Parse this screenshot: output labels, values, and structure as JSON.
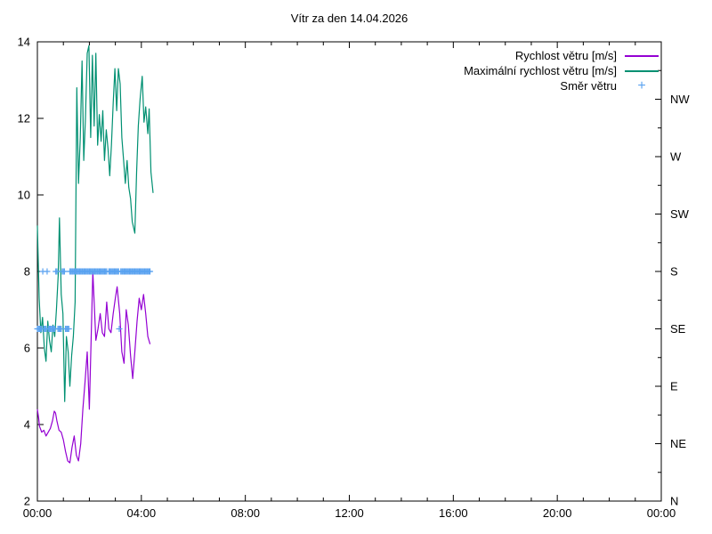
{
  "title": "Vítr za den 14.04.2026",
  "legend": [
    {
      "label": "Rychlost větru [m/s]",
      "type": "line",
      "color": "#9400d3"
    },
    {
      "label": "Maximální rychlost větru [m/s]",
      "type": "line",
      "color": "#009072"
    },
    {
      "label": "Směr větru",
      "type": "plus",
      "color": "#5aa2f0"
    }
  ],
  "chart_data": {
    "type": "line",
    "title": "Vítr za den 14.04.2026",
    "grid": false,
    "legend_position": "top-right-inside",
    "x_axis": {
      "unit": "time of day",
      "range_hours": [
        0,
        24
      ],
      "major_tick_hours": [
        0,
        4,
        8,
        12,
        16,
        20,
        24
      ],
      "major_tick_labels": [
        "00:00",
        "04:00",
        "08:00",
        "12:00",
        "16:00",
        "20:00",
        "00:00"
      ],
      "minor_tick_every_hours": 1
    },
    "y_axis_left": {
      "unit": "m/s",
      "range": [
        2,
        14
      ],
      "ticks": [
        2,
        4,
        6,
        8,
        10,
        12,
        14
      ]
    },
    "y_axis_right": {
      "unit": "wind direction",
      "minor_tick_step": 0.75,
      "labels": [
        {
          "value": 2,
          "label": "N"
        },
        {
          "value": 3.5,
          "label": "NE"
        },
        {
          "value": 5,
          "label": "E"
        },
        {
          "value": 6.5,
          "label": "SE"
        },
        {
          "value": 8,
          "label": "S"
        },
        {
          "value": 9.5,
          "label": "SW"
        },
        {
          "value": 11,
          "label": "W"
        },
        {
          "value": 12.5,
          "label": "NW"
        }
      ]
    },
    "series": [
      {
        "name": "Rychlost větru [m/s]",
        "style": "line",
        "color": "#9400d3",
        "points": [
          [
            0,
            4.4
          ],
          [
            0.05,
            4.15
          ],
          [
            0.083,
            3.95
          ],
          [
            0.167,
            3.8
          ],
          [
            0.25,
            3.85
          ],
          [
            0.333,
            3.7
          ],
          [
            0.417,
            3.8
          ],
          [
            0.5,
            3.9
          ],
          [
            0.583,
            4.1
          ],
          [
            0.65,
            4.35
          ],
          [
            0.7,
            4.3
          ],
          [
            0.75,
            4.1
          ],
          [
            0.833,
            3.85
          ],
          [
            0.917,
            3.8
          ],
          [
            1,
            3.6
          ],
          [
            1.083,
            3.3
          ],
          [
            1.167,
            3.05
          ],
          [
            1.25,
            3
          ],
          [
            1.333,
            3.4
          ],
          [
            1.417,
            3.7
          ],
          [
            1.5,
            3.2
          ],
          [
            1.583,
            3.05
          ],
          [
            1.667,
            3.5
          ],
          [
            1.75,
            4.4
          ],
          [
            1.833,
            5.1
          ],
          [
            1.917,
            5.9
          ],
          [
            2,
            4.4
          ],
          [
            2.083,
            6.6
          ],
          [
            2.133,
            8
          ],
          [
            2.183,
            7.2
          ],
          [
            2.25,
            6.2
          ],
          [
            2.333,
            6.5
          ],
          [
            2.417,
            6.9
          ],
          [
            2.5,
            6.4
          ],
          [
            2.583,
            6.3
          ],
          [
            2.667,
            7.2
          ],
          [
            2.75,
            6.5
          ],
          [
            2.833,
            6.4
          ],
          [
            2.917,
            6.9
          ],
          [
            3,
            7.3
          ],
          [
            3.067,
            7.6
          ],
          [
            3.167,
            6.9
          ],
          [
            3.25,
            5.9
          ],
          [
            3.333,
            5.6
          ],
          [
            3.417,
            7
          ],
          [
            3.5,
            6.6
          ],
          [
            3.583,
            5.8
          ],
          [
            3.667,
            5.2
          ],
          [
            3.75,
            5.9
          ],
          [
            3.833,
            6.7
          ],
          [
            3.917,
            7.3
          ],
          [
            4,
            7
          ],
          [
            4.083,
            7.4
          ],
          [
            4.167,
            6.9
          ],
          [
            4.25,
            6.3
          ],
          [
            4.333,
            6.1
          ]
        ]
      },
      {
        "name": "Maximální rychlost větru [m/s]",
        "style": "line",
        "color": "#009072",
        "points": [
          [
            0,
            9.2
          ],
          [
            0.067,
            7.3
          ],
          [
            0.133,
            6.4
          ],
          [
            0.2,
            6.8
          ],
          [
            0.267,
            6
          ],
          [
            0.333,
            5.65
          ],
          [
            0.4,
            6.7
          ],
          [
            0.467,
            6.2
          ],
          [
            0.533,
            5.9
          ],
          [
            0.6,
            6.6
          ],
          [
            0.667,
            6.3
          ],
          [
            0.733,
            7
          ],
          [
            0.8,
            7.9
          ],
          [
            0.85,
            9.4
          ],
          [
            0.917,
            7.4
          ],
          [
            0.983,
            6.9
          ],
          [
            1.05,
            4.6
          ],
          [
            1.117,
            6.3
          ],
          [
            1.183,
            5.9
          ],
          [
            1.25,
            5
          ],
          [
            1.317,
            5.8
          ],
          [
            1.383,
            6.3
          ],
          [
            1.45,
            7.2
          ],
          [
            1.517,
            12.8
          ],
          [
            1.583,
            10.3
          ],
          [
            1.65,
            11.5
          ],
          [
            1.717,
            13.5
          ],
          [
            1.783,
            10.9
          ],
          [
            1.85,
            12
          ],
          [
            1.917,
            13.7
          ],
          [
            1.983,
            13.9
          ],
          [
            2.05,
            11.5
          ],
          [
            2.117,
            13.65
          ],
          [
            2.183,
            11.8
          ],
          [
            2.25,
            13.7
          ],
          [
            2.317,
            11.3
          ],
          [
            2.383,
            12.1
          ],
          [
            2.45,
            11.4
          ],
          [
            2.517,
            12.2
          ],
          [
            2.583,
            10.9
          ],
          [
            2.65,
            11.7
          ],
          [
            2.717,
            11.2
          ],
          [
            2.783,
            10.5
          ],
          [
            2.85,
            11.3
          ],
          [
            2.917,
            12.4
          ],
          [
            2.983,
            13.3
          ],
          [
            3.05,
            12.2
          ],
          [
            3.117,
            13.3
          ],
          [
            3.183,
            12.9
          ],
          [
            3.25,
            11.5
          ],
          [
            3.317,
            10.9
          ],
          [
            3.383,
            10.3
          ],
          [
            3.45,
            10.9
          ],
          [
            3.517,
            10.2
          ],
          [
            3.583,
            9.9
          ],
          [
            3.65,
            9.3
          ],
          [
            3.75,
            9
          ],
          [
            3.817,
            10.6
          ],
          [
            3.883,
            11.8
          ],
          [
            3.95,
            12.5
          ],
          [
            4.033,
            13.1
          ],
          [
            4.1,
            11.9
          ],
          [
            4.167,
            12.3
          ],
          [
            4.25,
            11.6
          ],
          [
            4.3,
            12.25
          ],
          [
            4.367,
            10.6
          ],
          [
            4.45,
            10.05
          ]
        ]
      },
      {
        "name": "Směr větru",
        "style": "plus",
        "color": "#5aa2f0",
        "direction_value_map": {
          "N": 2,
          "NE": 3.5,
          "E": 5,
          "SE": 6.5,
          "S": 8,
          "SW": 9.5,
          "W": 11,
          "NW": 12.5
        },
        "points": [
          [
            0,
            "SE"
          ],
          [
            0.042,
            "SE"
          ],
          [
            0.083,
            "SE"
          ],
          [
            0.125,
            "SE"
          ],
          [
            0.167,
            "SE"
          ],
          [
            0.208,
            "S"
          ],
          [
            0.25,
            "SE"
          ],
          [
            0.292,
            "SE"
          ],
          [
            0.333,
            "SE"
          ],
          [
            0.375,
            "S"
          ],
          [
            0.417,
            "SE"
          ],
          [
            0.458,
            "SE"
          ],
          [
            0.5,
            "SE"
          ],
          [
            0.542,
            "SE"
          ],
          [
            0.583,
            "SE"
          ],
          [
            0.625,
            "SE"
          ],
          [
            0.667,
            "SE"
          ],
          [
            0.708,
            "S"
          ],
          [
            0.75,
            "S"
          ],
          [
            0.792,
            "SE"
          ],
          [
            0.833,
            "SE"
          ],
          [
            0.875,
            "SE"
          ],
          [
            0.917,
            "SE"
          ],
          [
            0.958,
            "S"
          ],
          [
            1,
            "S"
          ],
          [
            1.042,
            "S"
          ],
          [
            1.083,
            "SE"
          ],
          [
            1.125,
            "SE"
          ],
          [
            1.167,
            "SE"
          ],
          [
            1.208,
            "SE"
          ],
          [
            1.25,
            "S"
          ],
          [
            1.292,
            "S"
          ],
          [
            1.333,
            "S"
          ],
          [
            1.375,
            "S"
          ],
          [
            1.417,
            "S"
          ],
          [
            1.458,
            "S"
          ],
          [
            1.5,
            "S"
          ],
          [
            1.542,
            "S"
          ],
          [
            1.583,
            "S"
          ],
          [
            1.625,
            "S"
          ],
          [
            1.667,
            "S"
          ],
          [
            1.708,
            "S"
          ],
          [
            1.75,
            "S"
          ],
          [
            1.792,
            "S"
          ],
          [
            1.833,
            "S"
          ],
          [
            1.875,
            "S"
          ],
          [
            1.917,
            "S"
          ],
          [
            1.958,
            "S"
          ],
          [
            2,
            "S"
          ],
          [
            2.042,
            "S"
          ],
          [
            2.083,
            "S"
          ],
          [
            2.125,
            "S"
          ],
          [
            2.167,
            "S"
          ],
          [
            2.208,
            "S"
          ],
          [
            2.25,
            "S"
          ],
          [
            2.292,
            "S"
          ],
          [
            2.333,
            "S"
          ],
          [
            2.375,
            "S"
          ],
          [
            2.417,
            "S"
          ],
          [
            2.458,
            "S"
          ],
          [
            2.5,
            "S"
          ],
          [
            2.542,
            "S"
          ],
          [
            2.583,
            "S"
          ],
          [
            2.625,
            "S"
          ],
          [
            2.667,
            "S"
          ],
          [
            2.75,
            "S"
          ],
          [
            2.792,
            "S"
          ],
          [
            2.833,
            "S"
          ],
          [
            2.875,
            "S"
          ],
          [
            2.917,
            "S"
          ],
          [
            2.958,
            "S"
          ],
          [
            3,
            "S"
          ],
          [
            3.042,
            "S"
          ],
          [
            3.083,
            "S"
          ],
          [
            3.125,
            "S"
          ],
          [
            3.15,
            "SE"
          ],
          [
            3.208,
            "S"
          ],
          [
            3.25,
            "S"
          ],
          [
            3.292,
            "S"
          ],
          [
            3.333,
            "S"
          ],
          [
            3.375,
            "S"
          ],
          [
            3.417,
            "S"
          ],
          [
            3.458,
            "S"
          ],
          [
            3.5,
            "S"
          ],
          [
            3.542,
            "S"
          ],
          [
            3.583,
            "S"
          ],
          [
            3.625,
            "S"
          ],
          [
            3.667,
            "S"
          ],
          [
            3.708,
            "S"
          ],
          [
            3.75,
            "S"
          ],
          [
            3.792,
            "S"
          ],
          [
            3.833,
            "S"
          ],
          [
            3.875,
            "S"
          ],
          [
            3.917,
            "S"
          ],
          [
            3.958,
            "S"
          ],
          [
            4,
            "S"
          ],
          [
            4.042,
            "S"
          ],
          [
            4.083,
            "S"
          ],
          [
            4.125,
            "S"
          ],
          [
            4.167,
            "S"
          ],
          [
            4.208,
            "S"
          ],
          [
            4.25,
            "S"
          ],
          [
            4.292,
            "S"
          ],
          [
            4.333,
            "S"
          ]
        ]
      }
    ]
  }
}
